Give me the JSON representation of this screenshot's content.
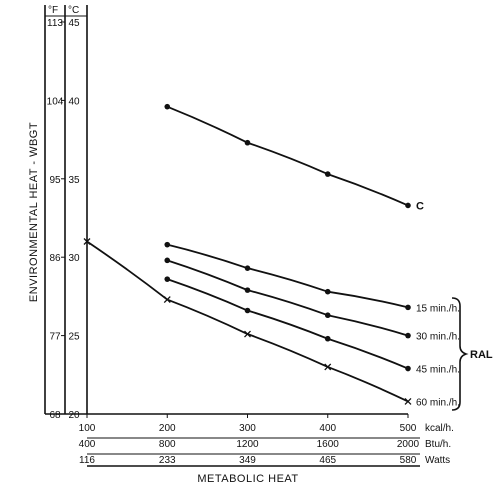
{
  "chart_data": {
    "type": "line",
    "y_axis_label": "ENVIRONMENTAL HEAT - WBGT",
    "x_axis_label": "METABOLIC HEAT",
    "y_units": {
      "fahrenheit": "°F",
      "celsius": "°C"
    },
    "y_ticks_celsius": [
      20,
      25,
      30,
      35,
      40,
      45
    ],
    "y_ticks_fahrenheit": [
      68,
      77,
      86,
      95,
      104,
      113
    ],
    "ylim_celsius": [
      20,
      45
    ],
    "x_scales": [
      {
        "unit": "kcal/h.",
        "ticks": [
          100,
          200,
          300,
          400,
          500
        ]
      },
      {
        "unit": "Btu/h.",
        "ticks": [
          400,
          800,
          1200,
          1600,
          2000
        ]
      },
      {
        "unit": "Watts",
        "ticks": [
          116,
          233,
          349,
          465,
          580
        ]
      }
    ],
    "xlim_kcal": [
      100,
      500
    ],
    "series": [
      {
        "name": "C",
        "marker": "dot",
        "points": [
          [
            200,
            39.6
          ],
          [
            300,
            37.3
          ],
          [
            400,
            35.3
          ],
          [
            500,
            33.3
          ]
        ]
      },
      {
        "name": "15 min./h.",
        "marker": "dot",
        "points": [
          [
            200,
            30.8
          ],
          [
            300,
            29.3
          ],
          [
            400,
            27.8
          ],
          [
            500,
            26.8
          ]
        ]
      },
      {
        "name": "30 min./h.",
        "marker": "dot",
        "points": [
          [
            200,
            29.8
          ],
          [
            300,
            27.9
          ],
          [
            400,
            26.3
          ],
          [
            500,
            25.0
          ]
        ]
      },
      {
        "name": "45 min./h.",
        "marker": "dot",
        "points": [
          [
            200,
            28.6
          ],
          [
            300,
            26.6
          ],
          [
            400,
            24.8
          ],
          [
            500,
            22.9
          ]
        ]
      },
      {
        "name": "60 min./h.",
        "marker": "cross",
        "points": [
          [
            100,
            31.0
          ],
          [
            200,
            27.3
          ],
          [
            300,
            25.1
          ],
          [
            400,
            23.0
          ],
          [
            500,
            20.8
          ]
        ]
      }
    ],
    "bracket_label": "RAL"
  }
}
